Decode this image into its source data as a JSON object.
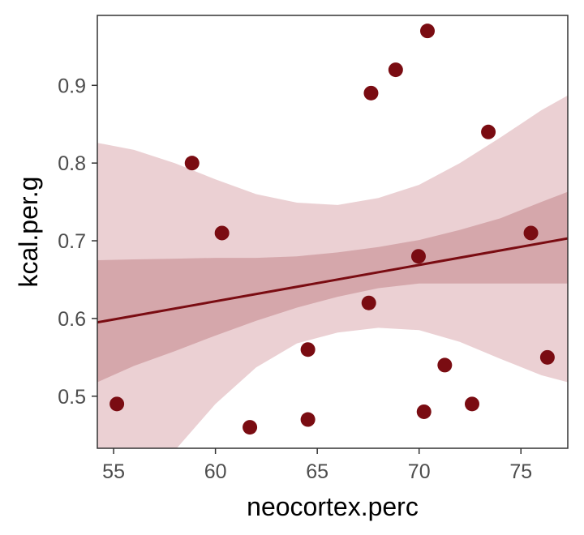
{
  "chart_data": {
    "type": "scatter",
    "title": "",
    "xlabel": "neocortex.perc",
    "ylabel": "kcal.per.g",
    "xlim": [
      54.2,
      77.3
    ],
    "ylim": [
      0.433,
      0.99
    ],
    "x_ticks": [
      55,
      60,
      65,
      70,
      75
    ],
    "x_tick_labels": [
      "55",
      "60",
      "65",
      "70",
      "75"
    ],
    "y_ticks": [
      0.5,
      0.6,
      0.7,
      0.8,
      0.9
    ],
    "y_tick_labels": [
      "0.5",
      "0.6",
      "0.7",
      "0.8",
      "0.9"
    ],
    "grid": false,
    "points": [
      {
        "x": 55.16,
        "y": 0.49
      },
      {
        "x": 58.85,
        "y": 0.8
      },
      {
        "x": 60.32,
        "y": 0.71
      },
      {
        "x": 61.69,
        "y": 0.46
      },
      {
        "x": 64.54,
        "y": 0.47
      },
      {
        "x": 64.54,
        "y": 0.56
      },
      {
        "x": 67.53,
        "y": 0.62
      },
      {
        "x": 67.64,
        "y": 0.89
      },
      {
        "x": 68.85,
        "y": 0.92
      },
      {
        "x": 69.97,
        "y": 0.68
      },
      {
        "x": 70.24,
        "y": 0.48
      },
      {
        "x": 70.41,
        "y": 0.97
      },
      {
        "x": 71.26,
        "y": 0.54
      },
      {
        "x": 72.6,
        "y": 0.49
      },
      {
        "x": 73.4,
        "y": 0.84
      },
      {
        "x": 75.49,
        "y": 0.71
      },
      {
        "x": 76.3,
        "y": 0.55
      }
    ],
    "fit_line": {
      "x": [
        54.2,
        77.3
      ],
      "y": [
        0.595,
        0.703
      ]
    },
    "interval_outer": {
      "x": [
        54.2,
        56,
        58,
        60,
        62,
        64,
        66,
        68,
        70,
        72,
        74,
        76,
        77.3
      ],
      "lower": [
        0.3,
        0.363,
        0.43,
        0.49,
        0.537,
        0.568,
        0.582,
        0.588,
        0.585,
        0.57,
        0.548,
        0.527,
        0.518
      ],
      "upper": [
        0.826,
        0.817,
        0.8,
        0.779,
        0.76,
        0.749,
        0.746,
        0.755,
        0.772,
        0.8,
        0.833,
        0.868,
        0.887
      ]
    },
    "interval_inner": {
      "x": [
        54.2,
        56,
        58,
        60,
        62,
        64,
        66,
        68,
        70,
        72,
        74,
        76,
        77.3
      ],
      "lower": [
        0.518,
        0.539,
        0.558,
        0.578,
        0.597,
        0.614,
        0.628,
        0.639,
        0.645,
        0.645,
        0.645,
        0.645,
        0.645
      ],
      "upper": [
        0.675,
        0.676,
        0.677,
        0.678,
        0.678,
        0.68,
        0.685,
        0.692,
        0.701,
        0.714,
        0.729,
        0.75,
        0.763
      ]
    },
    "colors": {
      "points": "#7a0c12",
      "fit_line": "#7a0c12",
      "band_outer": "#ebd0d3",
      "band_inner": "#d5a7ab",
      "axis": "#333333",
      "tick_label": "#4d4d4d"
    }
  }
}
